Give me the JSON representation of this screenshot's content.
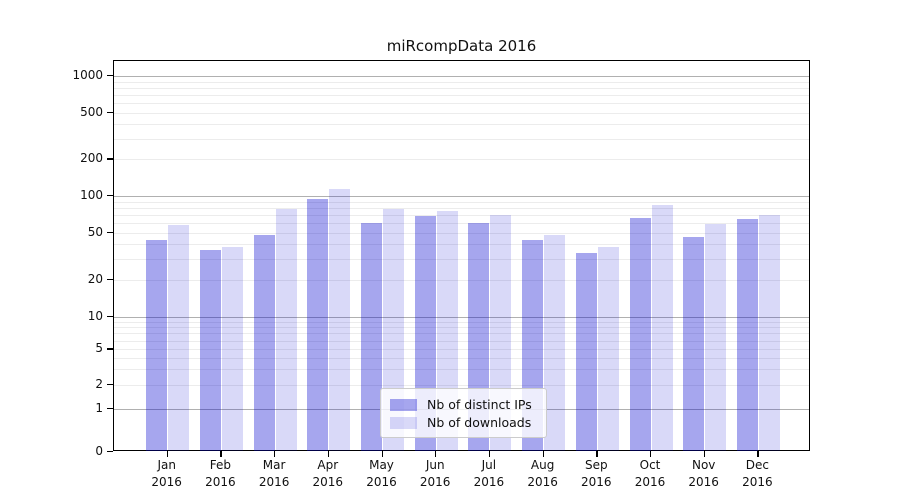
{
  "chart_data": {
    "type": "bar",
    "title": "miRcompData 2016",
    "xlabel": "",
    "ylabel": "",
    "categories": [
      "Jan",
      "Feb",
      "Mar",
      "Apr",
      "May",
      "Jun",
      "Jul",
      "Aug",
      "Sep",
      "Oct",
      "Nov",
      "Dec"
    ],
    "category_year": "2016",
    "series": [
      {
        "name": "Nb of distinct IPs",
        "fill": "rgba(0,0,205,0.35)",
        "values": [
          43,
          36,
          48,
          95,
          60,
          68,
          60,
          43,
          34,
          66,
          46,
          65
        ]
      },
      {
        "name": "Nb of downloads",
        "fill": "rgba(0,0,205,0.15)",
        "values": [
          58,
          38,
          78,
          115,
          78,
          76,
          70,
          48,
          38,
          84,
          59,
          70
        ]
      }
    ],
    "y_scale": "log-like (0,1,2,5,10,20,50,100,200,500,1000)",
    "y_ticks": [
      0,
      1,
      2,
      5,
      10,
      20,
      50,
      100,
      200,
      500,
      1000
    ],
    "y_tick_labels": [
      "0",
      "1",
      "2",
      "5",
      "10",
      "20",
      "50",
      "100",
      "200",
      "500",
      "1000"
    ],
    "major_gridlines": [
      1,
      10,
      100,
      1000
    ],
    "minor_gridlines": [
      2,
      3,
      4,
      5,
      6,
      7,
      8,
      9,
      20,
      30,
      40,
      50,
      60,
      70,
      80,
      90,
      200,
      300,
      400,
      500,
      600,
      700,
      800,
      900
    ],
    "grid": true,
    "legend_position": "lower center",
    "ylim": [
      0,
      1100
    ]
  },
  "colors": {
    "background": "#ffffff",
    "axis": "#000000",
    "major_grid": "#b0b0b0",
    "minor_grid": "#ececec",
    "bar_distinct_ips": "rgba(0,0,205,0.35)",
    "bar_downloads": "rgba(0,0,205,0.15)",
    "legend_border": "#cccccc"
  }
}
